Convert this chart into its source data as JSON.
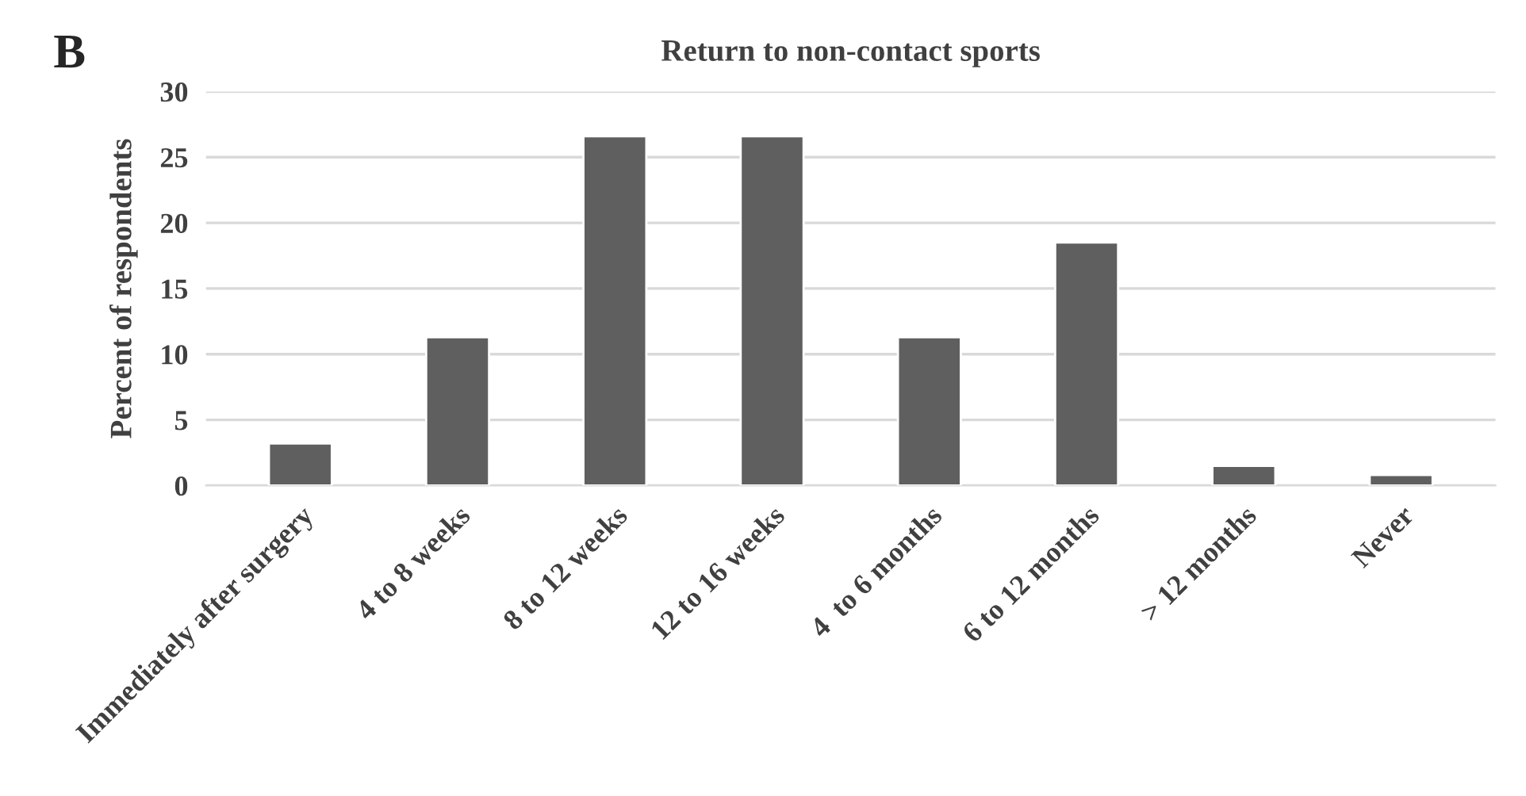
{
  "chart_data": {
    "type": "bar",
    "title": "Return to non-contact sports",
    "ylabel": "Percent of respondents",
    "annotations": [
      "B"
    ],
    "categories": [
      "Immediately after surgery",
      "4 to 8 weeks",
      "8 to 12 weeks",
      "12 to 16 weeks",
      "4  to 6 months",
      "6 to 12 months",
      "> 12 months",
      "Never"
    ],
    "values": [
      3.2,
      11.3,
      26.6,
      26.6,
      11.3,
      18.5,
      1.5,
      0.8
    ],
    "color": "#5f5f5f",
    "ylim": [
      0,
      30
    ],
    "yticks": [
      0,
      5,
      10,
      15,
      20,
      25,
      30
    ],
    "grid": "y"
  }
}
